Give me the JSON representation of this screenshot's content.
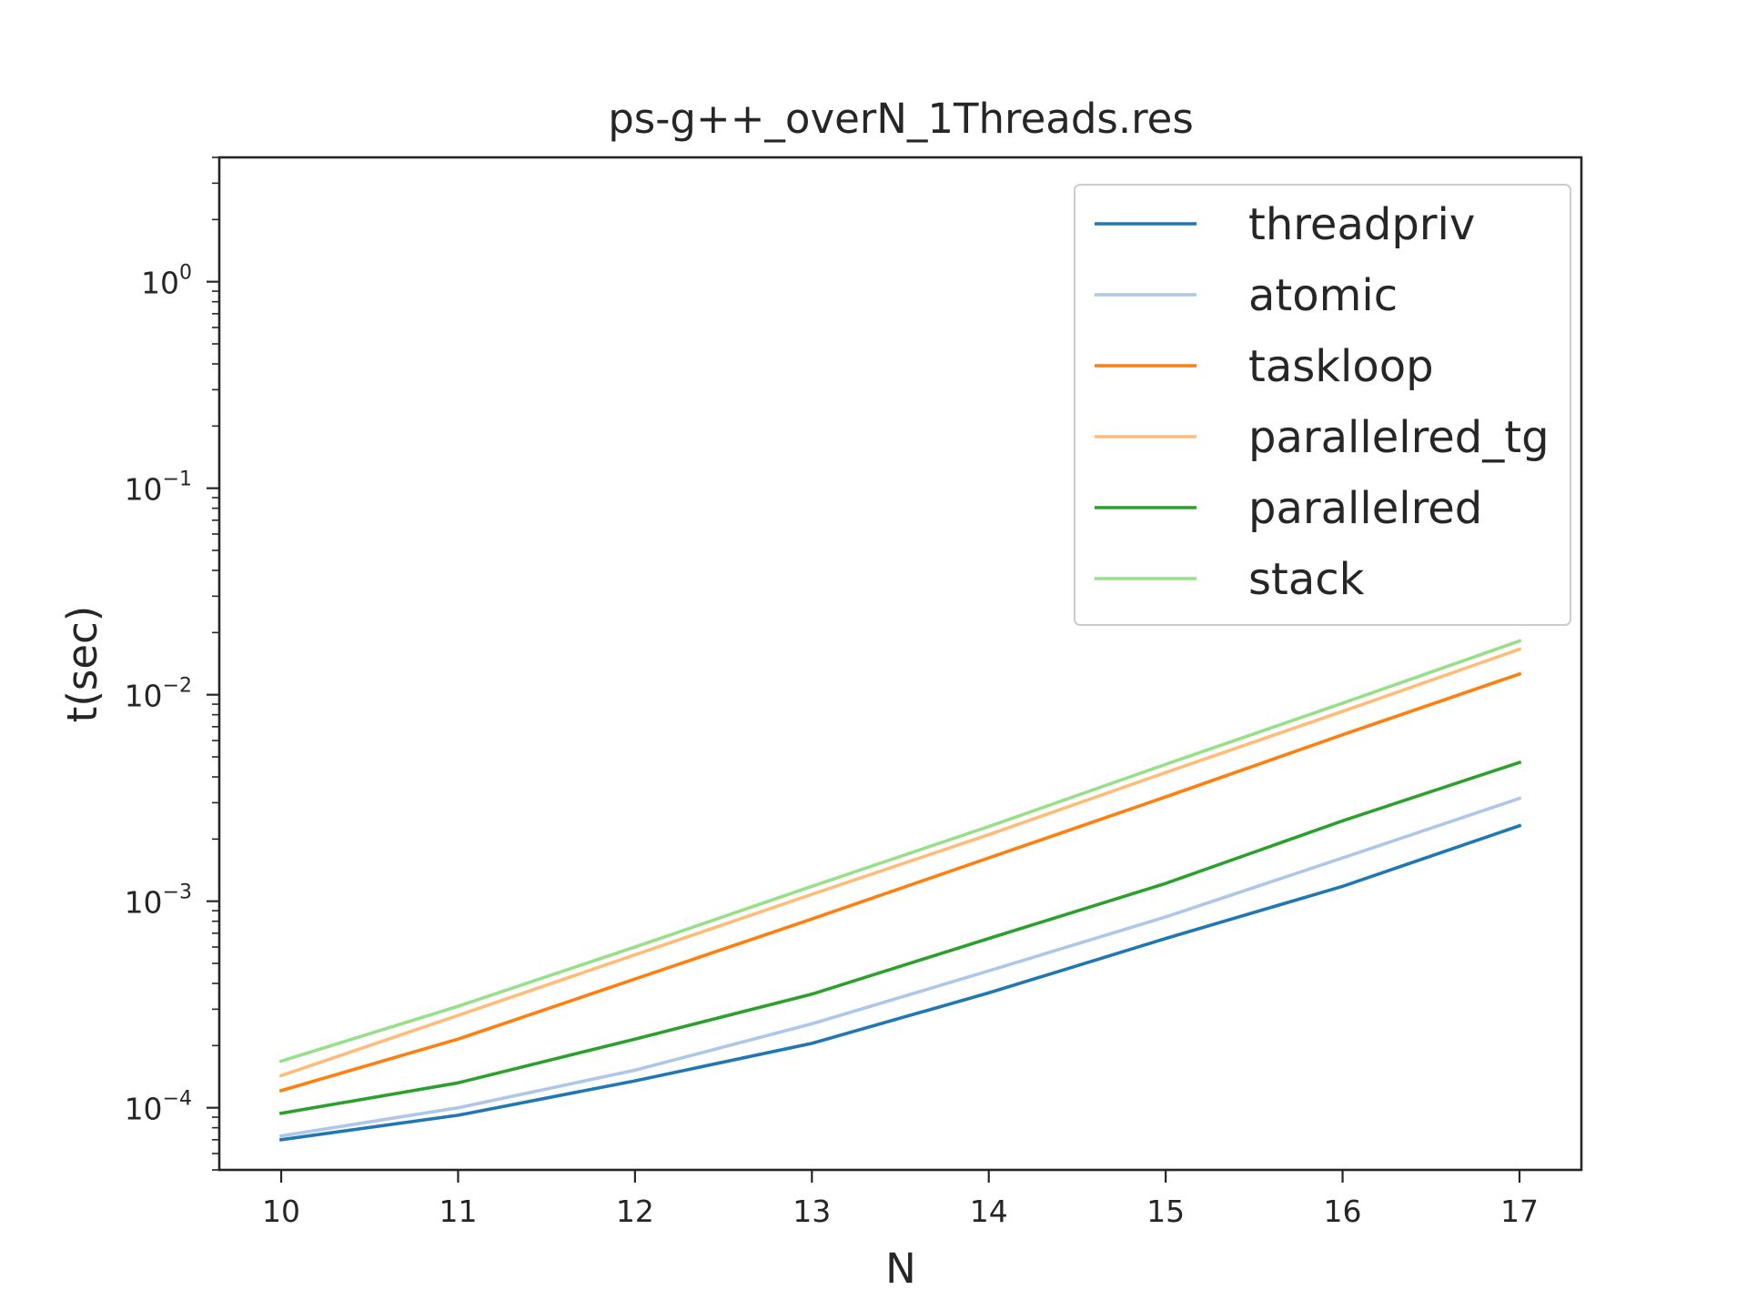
{
  "chart_data": {
    "type": "line",
    "title": "ps-g++_overN_1Threads.res",
    "xlabel": "N",
    "ylabel": "t(sec)",
    "yscale": "log",
    "x": [
      10,
      11,
      12,
      13,
      14,
      15,
      16,
      17
    ],
    "xlim": [
      9.65,
      17.35
    ],
    "ylim": [
      5e-05,
      4
    ],
    "x_ticks": [
      "10",
      "11",
      "12",
      "13",
      "14",
      "15",
      "16",
      "17"
    ],
    "y_ticks": [
      {
        "value": 0.0001,
        "base": "10",
        "exp": "−4"
      },
      {
        "value": 0.001,
        "base": "10",
        "exp": "−3"
      },
      {
        "value": 0.01,
        "base": "10",
        "exp": "−2"
      },
      {
        "value": 0.1,
        "base": "10",
        "exp": "−1"
      },
      {
        "value": 1,
        "base": "10",
        "exp": "0"
      }
    ],
    "grid": false,
    "legend_position": "top-right",
    "series": [
      {
        "name": "threadpriv",
        "color": "#1f77b4",
        "values": [
          7e-05,
          9.2e-05,
          0.000135,
          0.000205,
          0.00036,
          0.00066,
          0.00118,
          0.00232
        ]
      },
      {
        "name": "atomic",
        "color": "#aec7e8",
        "values": [
          7.3e-05,
          0.0001,
          0.000152,
          0.000255,
          0.00046,
          0.00084,
          0.00162,
          0.00315
        ]
      },
      {
        "name": "taskloop",
        "color": "#ff7f0e",
        "values": [
          0.000121,
          0.000215,
          0.00042,
          0.00082,
          0.00162,
          0.0032,
          0.0064,
          0.0126
        ]
      },
      {
        "name": "parallelred_tg",
        "color": "#ffbb78",
        "values": [
          0.000143,
          0.00028,
          0.00055,
          0.00108,
          0.0021,
          0.0042,
          0.0083,
          0.0166
        ]
      },
      {
        "name": "parallelred",
        "color": "#2ca02c",
        "values": [
          9.4e-05,
          0.000132,
          0.000215,
          0.000355,
          0.00066,
          0.00122,
          0.00245,
          0.0047
        ]
      },
      {
        "name": "stack",
        "color": "#98df8a",
        "values": [
          0.000168,
          0.00031,
          0.0006,
          0.00118,
          0.0023,
          0.0046,
          0.0091,
          0.0182
        ]
      }
    ]
  }
}
